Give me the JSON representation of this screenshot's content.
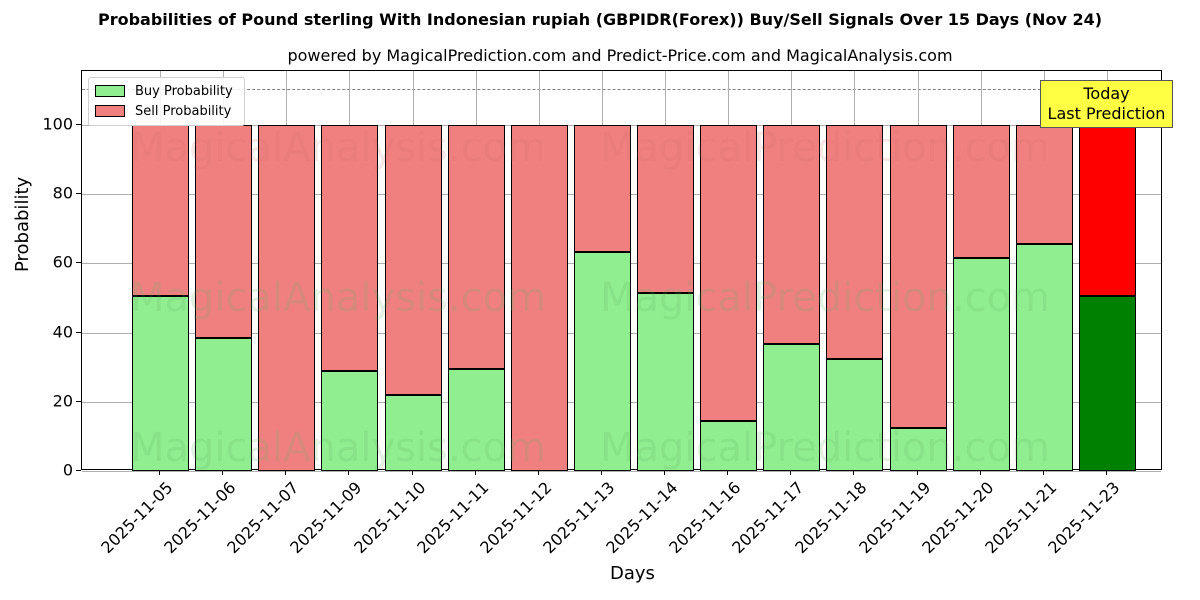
{
  "title": "Probabilities of Pound sterling With Indonesian rupiah (GBPIDR(Forex)) Buy/Sell Signals Over 15 Days (Nov 24)",
  "subtitle": "powered by MagicalPrediction.com and Predict-Price.com and MagicalAnalysis.com",
  "legend": {
    "buy": "Buy Probability",
    "sell": "Sell Probability"
  },
  "annotation": {
    "line1": "Today",
    "line2": "Last Prediction"
  },
  "watermarks": [
    "MagicalAnalysis.com",
    "MagicalPrediction.com"
  ],
  "colors": {
    "buy": "#90ee90",
    "sell": "#f08080",
    "today_buy": "#008000",
    "today_sell": "#ff0000",
    "annotation_bg": "#ffff44"
  },
  "chart_data": {
    "type": "bar",
    "stacked": true,
    "title": "Probabilities of Pound sterling With Indonesian rupiah (GBPIDR(Forex)) Buy/Sell Signals Over 15 Days (Nov 24)",
    "subtitle": "powered by MagicalPrediction.com and Predict-Price.com and MagicalAnalysis.com",
    "xlabel": "Days",
    "ylabel": "Probability",
    "ylim": [
      0,
      115
    ],
    "yticks": [
      0,
      20,
      40,
      60,
      80,
      100
    ],
    "reference_line": 110,
    "grid": true,
    "legend_position": "upper left",
    "categories": [
      "2025-11-05",
      "2025-11-06",
      "2025-11-07",
      "2025-11-09",
      "2025-11-10",
      "2025-11-11",
      "2025-11-12",
      "2025-11-13",
      "2025-11-14",
      "2025-11-16",
      "2025-11-17",
      "2025-11-18",
      "2025-11-19",
      "2025-11-20",
      "2025-11-21",
      "2025-11-23"
    ],
    "series": [
      {
        "name": "Buy Probability",
        "values": [
          50.6,
          38.3,
          0,
          28.9,
          21.9,
          29.4,
          0,
          63.4,
          51.4,
          14.4,
          36.8,
          32.3,
          12.3,
          61.7,
          65.5,
          50.5
        ]
      },
      {
        "name": "Sell Probability",
        "values": [
          49.4,
          61.7,
          100,
          71.1,
          78.1,
          70.6,
          100,
          36.6,
          48.6,
          85.6,
          63.2,
          67.7,
          87.7,
          38.3,
          34.5,
          49.5
        ]
      }
    ],
    "annotations": [
      "Today",
      "Last Prediction"
    ]
  }
}
